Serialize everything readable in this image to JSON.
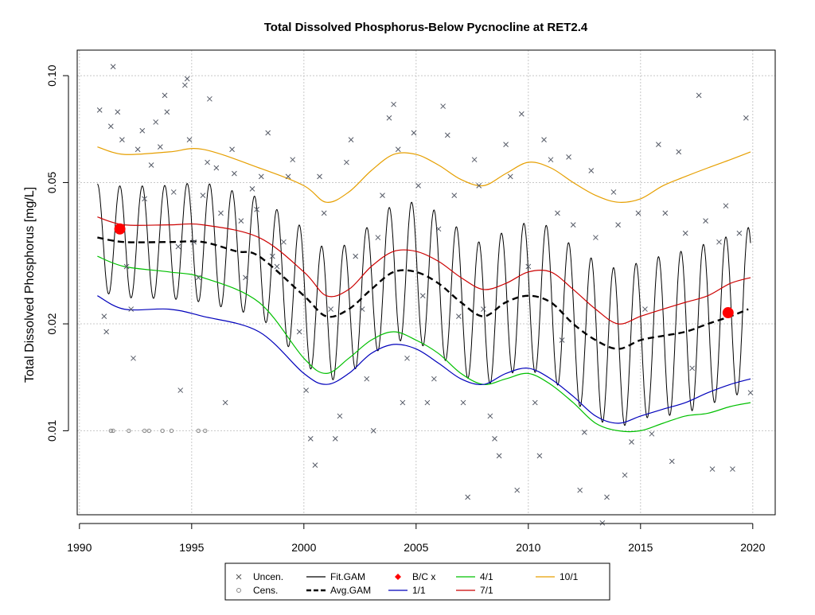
{
  "chart_data": {
    "type": "line",
    "title": "Total Dissolved Phosphorus-Below Pycnocline at RET2.4",
    "xlabel": "",
    "ylabel": "Total Dissolved Phosphorus [mg/L]",
    "y_scale": "log",
    "xlim": [
      1989.9,
      2021.0
    ],
    "ylim": [
      0.0058,
      0.118
    ],
    "grid": true,
    "x_ticks": [
      {
        "value": 1990,
        "label": "1990"
      },
      {
        "value": 1995,
        "label": "1995"
      },
      {
        "value": 2000,
        "label": "2000"
      },
      {
        "value": 2005,
        "label": "2005"
      },
      {
        "value": 2010,
        "label": "2010"
      },
      {
        "value": 2015,
        "label": "2015"
      },
      {
        "value": 2020,
        "label": "2020"
      }
    ],
    "y_ticks": [
      {
        "value": 0.01,
        "label": "0.01"
      },
      {
        "value": 0.02,
        "label": "0.02"
      },
      {
        "value": 0.05,
        "label": "0.05"
      },
      {
        "value": 0.1,
        "label": "0.10"
      }
    ],
    "legend": {
      "position": "bottom",
      "entries": [
        {
          "label": "Uncen.",
          "symbol": "x",
          "color": "#555555"
        },
        {
          "label": "Fit.GAM",
          "symbol": "line",
          "color": "#000000"
        },
        {
          "label": "B/C x",
          "symbol": "diamond",
          "color": "#ff0000"
        },
        {
          "label": "4/1",
          "symbol": "line",
          "color": "#00c000"
        },
        {
          "label": "10/1",
          "symbol": "line",
          "color": "#e69f00"
        },
        {
          "label": "Cens.",
          "symbol": "circle",
          "color": "#888888"
        },
        {
          "label": "Avg.GAM",
          "symbol": "dashed",
          "color": "#000000"
        },
        {
          "label": "1/1",
          "symbol": "line",
          "color": "#0000bb"
        },
        {
          "label": "7/1",
          "symbol": "line",
          "color": "#cc0000"
        }
      ]
    },
    "series": [
      {
        "name": "10/1",
        "color": "#e69f00",
        "x": [
          1990.8,
          1992,
          1994,
          1995.5,
          1998,
          2000,
          2001,
          2002,
          2003,
          2004,
          2005,
          2006,
          2007,
          2008,
          2009,
          2010,
          2011,
          2012,
          2013,
          2014,
          2015,
          2016,
          2017,
          2018,
          2019,
          2019.9
        ],
        "y": [
          0.063,
          0.06,
          0.061,
          0.062,
          0.055,
          0.049,
          0.044,
          0.047,
          0.054,
          0.06,
          0.06,
          0.056,
          0.051,
          0.049,
          0.053,
          0.057,
          0.055,
          0.05,
          0.046,
          0.044,
          0.045,
          0.049,
          0.052,
          0.055,
          0.058,
          0.061
        ]
      },
      {
        "name": "7/1",
        "color": "#cc0000",
        "x": [
          1990.8,
          1992,
          1994,
          1995.5,
          1998,
          2000,
          2001,
          2002,
          2003,
          2004,
          2005,
          2006,
          2007,
          2008,
          2009,
          2010,
          2011,
          2012,
          2013,
          2014,
          2015,
          2016,
          2017,
          2018,
          2019,
          2019.9
        ],
        "y": [
          0.04,
          0.038,
          0.038,
          0.038,
          0.035,
          0.028,
          0.024,
          0.025,
          0.029,
          0.032,
          0.032,
          0.03,
          0.027,
          0.025,
          0.026,
          0.028,
          0.028,
          0.025,
          0.022,
          0.02,
          0.021,
          0.022,
          0.023,
          0.024,
          0.026,
          0.027
        ]
      },
      {
        "name": "Avg.GAM",
        "color": "#000000",
        "x": [
          1990.8,
          1992,
          1994,
          1995.5,
          1997,
          1998,
          2000,
          2001,
          2002,
          2003,
          2004,
          2005,
          2006,
          2007,
          2008,
          2009,
          2010,
          2011,
          2012,
          2013,
          2014,
          2015,
          2016,
          2017,
          2018,
          2019,
          2019.8
        ],
        "y": [
          0.035,
          0.034,
          0.034,
          0.034,
          0.032,
          0.031,
          0.024,
          0.021,
          0.022,
          0.025,
          0.028,
          0.028,
          0.026,
          0.023,
          0.021,
          0.023,
          0.024,
          0.023,
          0.02,
          0.018,
          0.017,
          0.018,
          0.0185,
          0.019,
          0.02,
          0.021,
          0.022
        ]
      },
      {
        "name": "4/1",
        "color": "#00c000",
        "x": [
          1990.8,
          1992,
          1994,
          1995.5,
          1998,
          2000,
          2001,
          2002,
          2003,
          2004,
          2005,
          2006,
          2007,
          2008,
          2009,
          2010,
          2011,
          2012,
          2013,
          2014,
          2015,
          2016,
          2017,
          2018,
          2019,
          2019.9
        ],
        "y": [
          0.031,
          0.029,
          0.028,
          0.027,
          0.023,
          0.016,
          0.0145,
          0.016,
          0.018,
          0.019,
          0.018,
          0.0165,
          0.0145,
          0.0135,
          0.014,
          0.0145,
          0.0135,
          0.012,
          0.0105,
          0.01,
          0.01,
          0.0105,
          0.011,
          0.0112,
          0.0117,
          0.012
        ]
      },
      {
        "name": "1/1",
        "color": "#0000bb",
        "x": [
          1990.8,
          1992,
          1994,
          1995.5,
          1998,
          2000,
          2001,
          2002,
          2003,
          2004,
          2005,
          2006,
          2007,
          2008,
          2009,
          2010,
          2011,
          2012,
          2013,
          2014,
          2015,
          2016,
          2017,
          2018,
          2019,
          2019.9
        ],
        "y": [
          0.024,
          0.022,
          0.022,
          0.021,
          0.019,
          0.0145,
          0.0135,
          0.0145,
          0.0165,
          0.0175,
          0.017,
          0.0155,
          0.014,
          0.0135,
          0.0145,
          0.015,
          0.014,
          0.0125,
          0.011,
          0.0105,
          0.011,
          0.0115,
          0.012,
          0.0128,
          0.0135,
          0.014
        ]
      }
    ],
    "fit_gam": {
      "name": "Fit.GAM",
      "color": "#000000",
      "x_start": 1990.8,
      "x_end": 2019.9,
      "seasonal_cycle_years": 1
    },
    "bc_points": [
      {
        "x": 1991.8,
        "y": 0.037
      },
      {
        "x": 2018.9,
        "y": 0.0215
      }
    ],
    "uncensored_points": [
      [
        1990.9,
        0.08
      ],
      [
        1991.1,
        0.021
      ],
      [
        1991.2,
        0.019
      ],
      [
        1991.4,
        0.072
      ],
      [
        1991.5,
        0.106
      ],
      [
        1991.7,
        0.079
      ],
      [
        1991.9,
        0.066
      ],
      [
        1992.1,
        0.029
      ],
      [
        1992.3,
        0.022
      ],
      [
        1992.4,
        0.016
      ],
      [
        1992.6,
        0.062
      ],
      [
        1992.8,
        0.07
      ],
      [
        1992.9,
        0.045
      ],
      [
        1993.2,
        0.056
      ],
      [
        1993.4,
        0.074
      ],
      [
        1993.6,
        0.063
      ],
      [
        1993.8,
        0.088
      ],
      [
        1993.9,
        0.079
      ],
      [
        1994.2,
        0.047
      ],
      [
        1994.4,
        0.033
      ],
      [
        1994.5,
        0.013
      ],
      [
        1994.7,
        0.094
      ],
      [
        1994.8,
        0.098
      ],
      [
        1994.9,
        0.066
      ],
      [
        1995.1,
        0.034
      ],
      [
        1995.3,
        0.027
      ],
      [
        1995.5,
        0.046
      ],
      [
        1995.7,
        0.057
      ],
      [
        1995.8,
        0.086
      ],
      [
        1996.1,
        0.055
      ],
      [
        1996.3,
        0.041
      ],
      [
        1996.5,
        0.012
      ],
      [
        1996.8,
        0.062
      ],
      [
        1996.9,
        0.053
      ],
      [
        1997.2,
        0.039
      ],
      [
        1997.4,
        0.027
      ],
      [
        1997.7,
        0.048
      ],
      [
        1997.9,
        0.042
      ],
      [
        1998.1,
        0.052
      ],
      [
        1998.4,
        0.069
      ],
      [
        1998.6,
        0.031
      ],
      [
        1998.8,
        0.029
      ],
      [
        1999.1,
        0.034
      ],
      [
        1999.3,
        0.052
      ],
      [
        1999.5,
        0.058
      ],
      [
        1999.8,
        0.019
      ],
      [
        2000.1,
        0.013
      ],
      [
        2000.3,
        0.0095
      ],
      [
        2000.5,
        0.008
      ],
      [
        2000.7,
        0.052
      ],
      [
        2000.9,
        0.041
      ],
      [
        2001.2,
        0.022
      ],
      [
        2001.4,
        0.0095
      ],
      [
        2001.6,
        0.011
      ],
      [
        2001.9,
        0.057
      ],
      [
        2002.1,
        0.066
      ],
      [
        2002.3,
        0.031
      ],
      [
        2002.6,
        0.022
      ],
      [
        2002.8,
        0.014
      ],
      [
        2003.1,
        0.01
      ],
      [
        2003.3,
        0.035
      ],
      [
        2003.5,
        0.046
      ],
      [
        2003.8,
        0.076
      ],
      [
        2004.0,
        0.083
      ],
      [
        2004.2,
        0.062
      ],
      [
        2004.4,
        0.012
      ],
      [
        2004.6,
        0.016
      ],
      [
        2004.9,
        0.069
      ],
      [
        2005.1,
        0.049
      ],
      [
        2005.3,
        0.024
      ],
      [
        2005.5,
        0.012
      ],
      [
        2005.8,
        0.014
      ],
      [
        2006.0,
        0.037
      ],
      [
        2006.2,
        0.082
      ],
      [
        2006.4,
        0.068
      ],
      [
        2006.7,
        0.046
      ],
      [
        2006.9,
        0.021
      ],
      [
        2007.1,
        0.012
      ],
      [
        2007.3,
        0.0065
      ],
      [
        2007.6,
        0.058
      ],
      [
        2007.8,
        0.049
      ],
      [
        2008.0,
        0.022
      ],
      [
        2008.3,
        0.011
      ],
      [
        2008.5,
        0.0095
      ],
      [
        2008.7,
        0.0085
      ],
      [
        2009.0,
        0.064
      ],
      [
        2009.2,
        0.052
      ],
      [
        2009.5,
        0.0068
      ],
      [
        2009.7,
        0.078
      ],
      [
        2010.0,
        0.029
      ],
      [
        2010.3,
        0.012
      ],
      [
        2010.5,
        0.0085
      ],
      [
        2010.7,
        0.066
      ],
      [
        2011.0,
        0.058
      ],
      [
        2011.3,
        0.041
      ],
      [
        2011.5,
        0.018
      ],
      [
        2011.8,
        0.059
      ],
      [
        2012.0,
        0.038
      ],
      [
        2012.3,
        0.0068
      ],
      [
        2012.5,
        0.0099
      ],
      [
        2012.8,
        0.054
      ],
      [
        2013.0,
        0.035
      ],
      [
        2013.3,
        0.0055
      ],
      [
        2013.5,
        0.0065
      ],
      [
        2013.8,
        0.047
      ],
      [
        2014.0,
        0.038
      ],
      [
        2014.3,
        0.0075
      ],
      [
        2014.6,
        0.0093
      ],
      [
        2014.9,
        0.041
      ],
      [
        2015.2,
        0.022
      ],
      [
        2015.5,
        0.0098
      ],
      [
        2015.8,
        0.064
      ],
      [
        2016.1,
        0.041
      ],
      [
        2016.4,
        0.0082
      ],
      [
        2016.7,
        0.061
      ],
      [
        2017.0,
        0.036
      ],
      [
        2017.3,
        0.015
      ],
      [
        2017.6,
        0.088
      ],
      [
        2017.9,
        0.039
      ],
      [
        2018.2,
        0.0078
      ],
      [
        2018.5,
        0.034
      ],
      [
        2018.8,
        0.043
      ],
      [
        2019.1,
        0.0078
      ],
      [
        2019.4,
        0.036
      ],
      [
        2019.7,
        0.076
      ],
      [
        2019.9,
        0.0128
      ]
    ],
    "censored_points": [
      [
        1991.4,
        0.01
      ],
      [
        1991.5,
        0.01
      ],
      [
        1992.2,
        0.01
      ],
      [
        1992.9,
        0.01
      ],
      [
        1993.1,
        0.01
      ],
      [
        1993.7,
        0.01
      ],
      [
        1994.1,
        0.01
      ],
      [
        1995.3,
        0.01
      ],
      [
        1995.6,
        0.01
      ]
    ]
  }
}
